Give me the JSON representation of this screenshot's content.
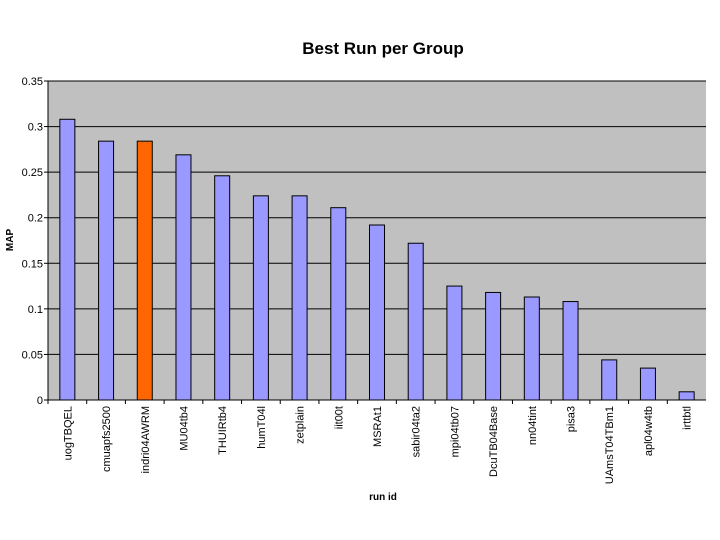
{
  "chart_data": {
    "type": "bar",
    "title": "Best Run per Group",
    "x_label": "run id",
    "y_label": "MAP",
    "categories": [
      "uogTBQEL",
      "cmuapfs2500",
      "indri04AWRM",
      "MU04tb4",
      "THUIRtb4",
      "humT04l",
      "zetplain",
      "iit00t",
      "MSRAt1",
      "sabir04ta2",
      "mpi04tb07",
      "DcuTB04Base",
      "nn04tint",
      "pisa3",
      "UAmsT04TBm1",
      "apl04w4tb",
      "irttbtl"
    ],
    "values": [
      0.308,
      0.284,
      0.284,
      0.269,
      0.246,
      0.224,
      0.224,
      0.211,
      0.192,
      0.172,
      0.125,
      0.118,
      0.113,
      0.108,
      0.044,
      0.035,
      0.009
    ],
    "colors": [
      "#9999ff",
      "#9999ff",
      "#ff6600",
      "#9999ff",
      "#9999ff",
      "#9999ff",
      "#9999ff",
      "#9999ff",
      "#9999ff",
      "#9999ff",
      "#9999ff",
      "#9999ff",
      "#9999ff",
      "#9999ff",
      "#9999ff",
      "#9999ff",
      "#9999ff"
    ],
    "ylim": [
      0,
      0.35
    ],
    "yticks": [
      0,
      0.05,
      0.1,
      0.15,
      0.2,
      0.25,
      0.3,
      0.35
    ],
    "grid": true
  }
}
